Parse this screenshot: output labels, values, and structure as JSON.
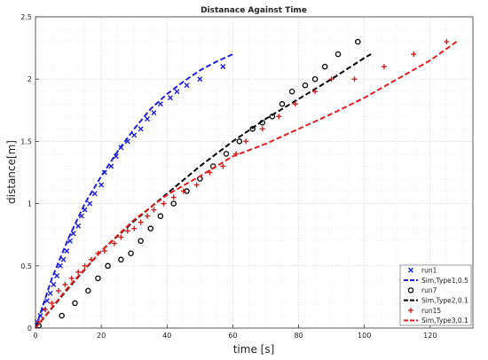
{
  "chart_data": {
    "type": "scatter",
    "title": "Distanace Against Time",
    "xlabel": "time [s]",
    "ylabel": "distance[m]",
    "xlim": [
      0,
      133
    ],
    "ylim": [
      0,
      2.5
    ],
    "xticks": [
      0,
      20,
      40,
      60,
      80,
      100,
      120
    ],
    "yticks": [
      0,
      0.5,
      1,
      1.5,
      2,
      2.5
    ],
    "xtick_labels": [
      "0",
      "20",
      "40",
      "60",
      "80",
      "100",
      "120"
    ],
    "ytick_labels": [
      "0",
      "0.5",
      "1",
      "1.5",
      "2",
      "2.5"
    ],
    "grid": true,
    "legend_position": "bottom-right",
    "series": [
      {
        "name": "run1",
        "kind": "scatter",
        "marker": "x",
        "color": "#1f1fd6",
        "x": [
          0.5,
          1.5,
          2.5,
          3.5,
          4.5,
          5.5,
          6.5,
          7.5,
          8.5,
          9.5,
          10.5,
          11.5,
          13,
          14,
          15,
          16.5,
          18,
          20,
          21,
          23,
          24.5,
          26,
          28,
          30,
          32,
          34,
          36,
          38,
          41,
          43,
          46,
          50,
          57
        ],
        "y": [
          0.05,
          0.1,
          0.15,
          0.22,
          0.28,
          0.35,
          0.42,
          0.5,
          0.55,
          0.62,
          0.7,
          0.76,
          0.82,
          0.9,
          0.95,
          1.0,
          1.08,
          1.15,
          1.25,
          1.3,
          1.38,
          1.45,
          1.5,
          1.55,
          1.6,
          1.68,
          1.73,
          1.8,
          1.85,
          1.9,
          1.95,
          2.0,
          2.1
        ]
      },
      {
        "name": "Sim,Type1,0.5",
        "kind": "line",
        "dash": true,
        "color": "#1f1fd6",
        "x": [
          0,
          5,
          10,
          15,
          20,
          25,
          30,
          35,
          40,
          45,
          50,
          55,
          60
        ],
        "y": [
          0,
          0.4,
          0.72,
          1.0,
          1.22,
          1.42,
          1.6,
          1.76,
          1.88,
          1.98,
          2.07,
          2.14,
          2.2
        ]
      },
      {
        "name": "run7",
        "kind": "scatter",
        "marker": "o",
        "color": "#000000",
        "x": [
          1,
          8,
          12,
          16,
          19,
          22,
          26,
          29,
          32,
          35,
          38,
          42,
          46,
          50,
          54,
          58,
          62,
          66,
          69,
          72,
          75,
          78,
          82,
          85,
          88,
          92,
          98
        ],
        "y": [
          0.02,
          0.1,
          0.2,
          0.3,
          0.4,
          0.5,
          0.55,
          0.6,
          0.7,
          0.8,
          0.9,
          1.0,
          1.1,
          1.2,
          1.3,
          1.4,
          1.5,
          1.6,
          1.65,
          1.7,
          1.8,
          1.9,
          1.95,
          2.0,
          2.1,
          2.2,
          2.3
        ]
      },
      {
        "name": "Sim,Type2,0.1",
        "kind": "line",
        "dash": true,
        "color": "#000000",
        "x": [
          0,
          10,
          20,
          30,
          40,
          50,
          60,
          70,
          80,
          90,
          100,
          102
        ],
        "y": [
          0,
          0.32,
          0.62,
          0.86,
          1.08,
          1.3,
          1.5,
          1.68,
          1.84,
          2.0,
          2.17,
          2.2
        ]
      },
      {
        "name": "run15",
        "kind": "scatter",
        "marker": "+",
        "color": "#cc2222",
        "x": [
          1,
          3,
          5,
          7,
          9,
          11,
          13,
          15,
          17,
          19,
          21,
          24,
          26,
          28,
          30,
          32,
          34,
          36,
          39,
          42,
          45,
          49,
          53,
          57,
          61,
          64,
          69,
          74,
          79,
          85,
          90,
          97,
          106,
          115,
          125
        ],
        "y": [
          0.05,
          0.15,
          0.2,
          0.3,
          0.35,
          0.4,
          0.45,
          0.5,
          0.55,
          0.6,
          0.62,
          0.68,
          0.73,
          0.78,
          0.8,
          0.85,
          0.9,
          0.95,
          1.0,
          1.05,
          1.1,
          1.15,
          1.25,
          1.3,
          1.4,
          1.5,
          1.6,
          1.7,
          1.8,
          1.9,
          2.0,
          2.0,
          2.1,
          2.2,
          2.3
        ]
      },
      {
        "name": "Sim,Type3,0.1",
        "kind": "line",
        "dash": true,
        "color": "#e02020",
        "x": [
          0,
          10,
          20,
          30,
          40,
          50,
          60,
          70,
          80,
          90,
          100,
          110,
          120,
          128
        ],
        "y": [
          0,
          0.33,
          0.62,
          0.87,
          1.07,
          1.22,
          1.38,
          1.48,
          1.6,
          1.72,
          1.85,
          2.0,
          2.15,
          2.3
        ]
      }
    ]
  }
}
